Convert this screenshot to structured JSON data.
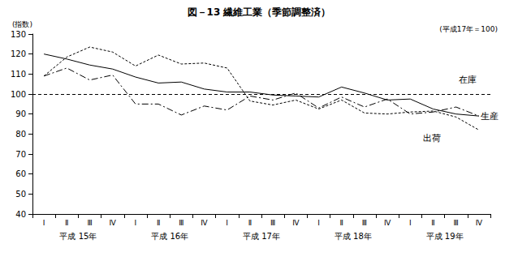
{
  "chart_data": {
    "type": "line",
    "title": "図－13 繊維工業（季節調整済）",
    "subtitle": "(平成17年＝100)",
    "y_label": "(指数)",
    "x_groups": [
      {
        "label": "平成 15年",
        "categories": [
          "Ⅰ",
          "Ⅱ",
          "Ⅲ",
          "Ⅳ"
        ]
      },
      {
        "label": "平成 16年",
        "categories": [
          "Ⅰ",
          "Ⅱ",
          "Ⅲ",
          "Ⅳ"
        ]
      },
      {
        "label": "平成 17年",
        "categories": [
          "Ⅰ",
          "Ⅱ",
          "Ⅲ",
          "Ⅳ"
        ]
      },
      {
        "label": "平成 18年",
        "categories": [
          "Ⅰ",
          "Ⅱ",
          "Ⅲ",
          "Ⅳ"
        ]
      },
      {
        "label": "平成 19年",
        "categories": [
          "Ⅰ",
          "Ⅱ",
          "Ⅲ",
          "Ⅳ"
        ]
      }
    ],
    "series": [
      {
        "name": "生産",
        "color": "#000000",
        "line_style": "solid",
        "values": [
          120,
          117.5,
          114.5,
          112.5,
          108.5,
          105.5,
          106,
          102.5,
          101,
          101,
          99.5,
          99,
          98.5,
          103.5,
          100.5,
          97,
          97.5,
          92.5,
          90,
          89
        ]
      },
      {
        "name": "在庫",
        "color": "#000000",
        "line_style": "dashdot",
        "values": [
          109,
          113,
          107,
          109.5,
          95,
          95,
          89.5,
          94,
          92,
          99,
          97,
          100.5,
          93,
          98.5,
          93.5,
          97.5,
          90,
          91,
          93.5,
          89
        ]
      },
      {
        "name": "出荷",
        "color": "#000000",
        "line_style": "dotted",
        "values": [
          109,
          118.5,
          123.5,
          121,
          114,
          119.5,
          115,
          115.5,
          113,
          96.5,
          94.5,
          97,
          92.5,
          97,
          90.5,
          90,
          91,
          91.5,
          88.5,
          82
        ]
      }
    ],
    "reference_lines": [
      {
        "y": 100,
        "color": "#000000",
        "line_style": "dashed"
      }
    ],
    "ylim": [
      40,
      130
    ],
    "yticks": [
      40,
      50,
      60,
      70,
      80,
      90,
      100,
      110,
      120,
      130
    ],
    "grid": false,
    "legend": false
  }
}
